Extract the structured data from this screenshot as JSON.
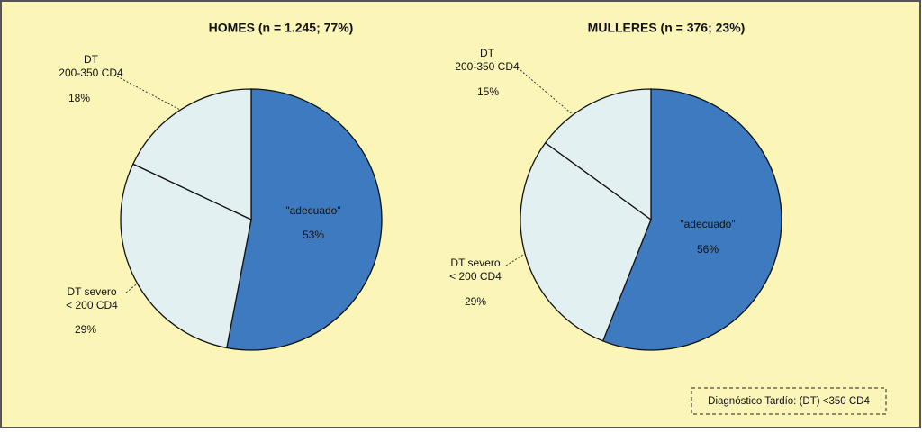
{
  "chart_data": [
    {
      "type": "pie",
      "title": "HOMES  (n = 1.245; 77%)",
      "categories": [
        "\"adecuado\"",
        "DT severo\n< 200 CD4",
        "DT\n200-350 CD4"
      ],
      "values": [
        53,
        29,
        18
      ],
      "value_labels": [
        "53%",
        "29%",
        "18%"
      ],
      "colors": [
        "#3d7abf",
        "#e3f0f2",
        "#e3f0f2"
      ]
    },
    {
      "type": "pie",
      "title": "MULLERES  (n = 376; 23%)",
      "categories": [
        "\"adecuado\"",
        "DT severo\n< 200 CD4",
        "DT\n200-350 CD4"
      ],
      "values": [
        56,
        29,
        15
      ],
      "value_labels": [
        "56%",
        "29%",
        "15%"
      ],
      "colors": [
        "#3d7abf",
        "#e3f0f2",
        "#e3f0f2"
      ]
    }
  ],
  "legend_note": "Diagnóstico Tardío: (DT)  <350 CD4"
}
